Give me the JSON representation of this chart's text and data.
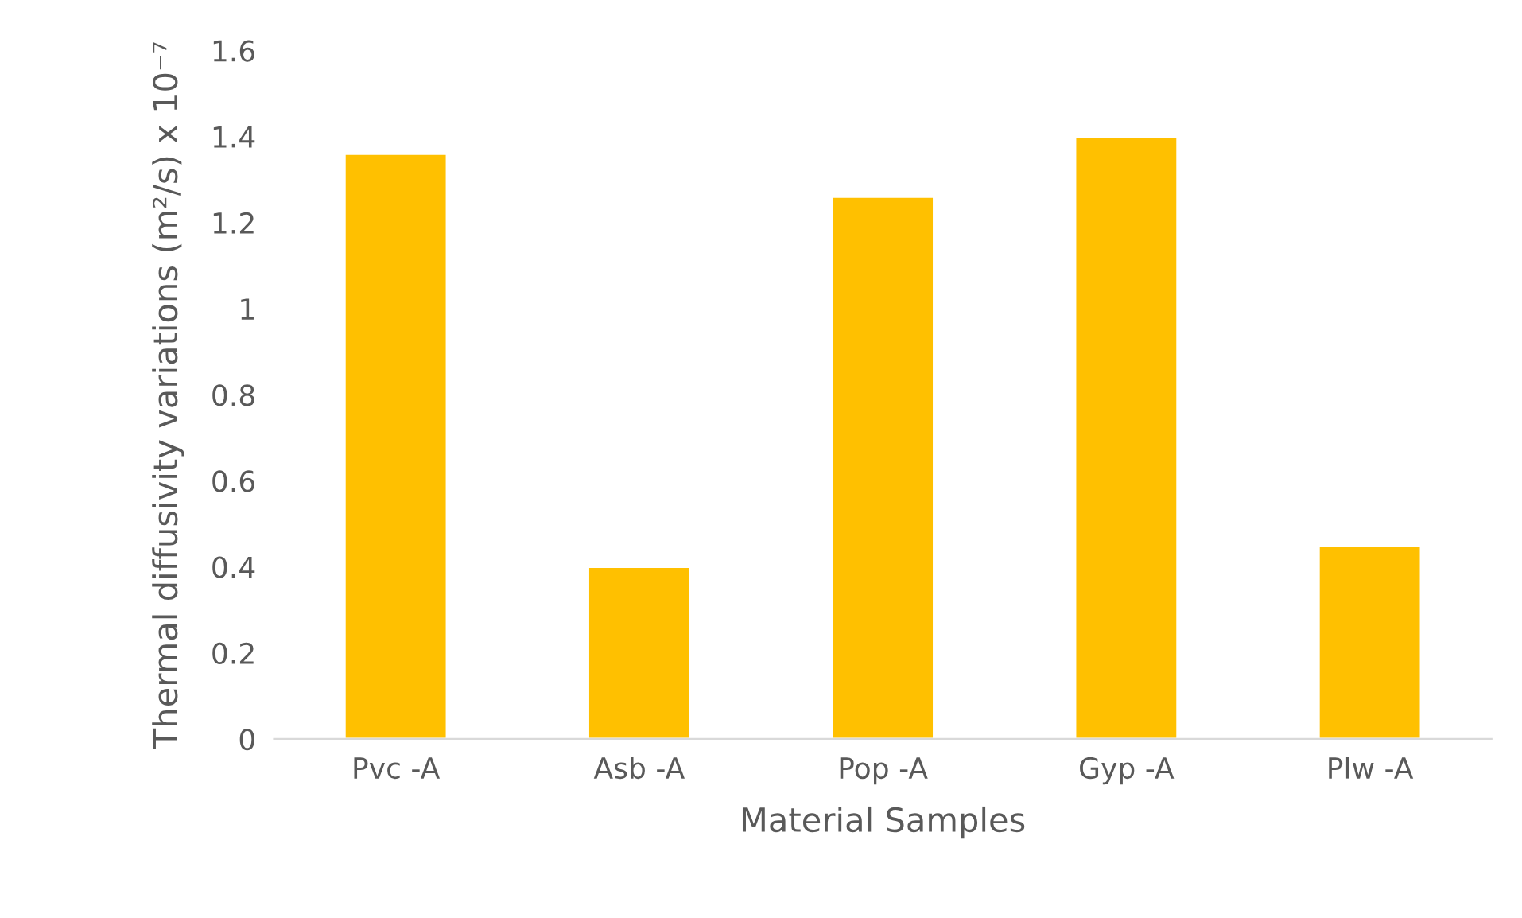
{
  "chart_data": {
    "type": "bar",
    "xlabel": "Material Samples",
    "ylabel": "Thermal diffusivity variations (m²/s) x 10⁻⁷",
    "categories": [
      "Pvc -A",
      "Asb -A",
      "Pop -A",
      "Gyp -A",
      "Plw -A"
    ],
    "values": [
      1.36,
      0.4,
      1.26,
      1.4,
      0.45
    ],
    "color": "#ffc000",
    "ylim": [
      0,
      1.6
    ],
    "yticks": [
      0,
      0.2,
      0.4,
      0.6,
      0.8,
      1,
      1.2,
      1.4,
      1.6
    ],
    "grid": false,
    "legend": false
  }
}
